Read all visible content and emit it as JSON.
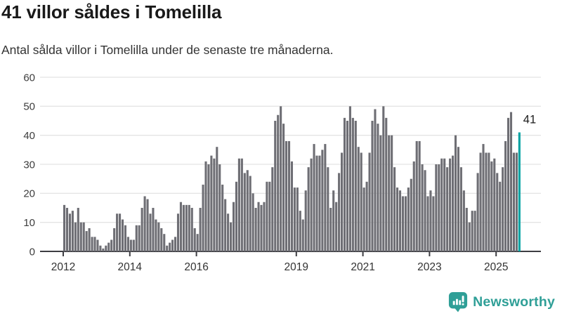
{
  "header": {
    "title": "41 villor såldes i Tomelilla",
    "subtitle": "Antal sålda villor i Tomelilla under de senaste tre månaderna."
  },
  "chart_data": {
    "type": "bar",
    "title": "41 villor såldes i Tomelilla",
    "subtitle": "Antal sålda villor i Tomelilla under de senaste tre månaderna.",
    "frequency": "monthly",
    "start": "2012-01",
    "values": [
      16,
      15,
      13,
      14,
      10,
      15,
      10,
      10,
      7,
      8,
      5,
      5,
      4,
      2,
      1,
      2,
      3,
      4,
      8,
      13,
      13,
      11,
      9,
      5,
      4,
      4,
      9,
      9,
      15,
      19,
      18,
      13,
      15,
      11,
      10,
      8,
      6,
      2,
      3,
      4,
      5,
      13,
      17,
      16,
      16,
      16,
      15,
      8,
      6,
      15,
      23,
      31,
      30,
      33,
      32,
      36,
      30,
      23,
      18,
      13,
      10,
      17,
      24,
      32,
      32,
      27,
      28,
      26,
      20,
      15,
      17,
      16,
      17,
      24,
      24,
      29,
      45,
      47,
      50,
      44,
      38,
      38,
      31,
      22,
      22,
      14,
      11,
      21,
      29,
      32,
      37,
      33,
      33,
      35,
      37,
      29,
      15,
      21,
      17,
      27,
      34,
      46,
      45,
      50,
      46,
      45,
      36,
      34,
      22,
      24,
      34,
      45,
      49,
      44,
      40,
      50,
      46,
      40,
      40,
      29,
      22,
      21,
      19,
      19,
      22,
      25,
      31,
      38,
      38,
      30,
      28,
      19,
      21,
      19,
      30,
      30,
      32,
      32,
      29,
      32,
      33,
      40,
      36,
      29,
      21,
      15,
      10,
      14,
      14,
      27,
      34,
      37,
      34,
      34,
      31,
      32,
      27,
      24,
      29,
      38,
      46,
      48,
      34,
      34,
      41
    ],
    "highlight": {
      "index": 164,
      "value": 41,
      "label": "41"
    },
    "colors": {
      "bar": "#6e6e74",
      "highlight": "#00a2a2",
      "grid": "#e4e4e4",
      "axis": "#3d3d42",
      "tick_label": "#333333",
      "y_label": "#3d3d3d",
      "annotation": "#1a1a1a"
    },
    "ylim": [
      0,
      60
    ],
    "yticks": [
      0,
      10,
      20,
      30,
      40,
      50,
      60
    ],
    "xticks": [
      {
        "label": "2012",
        "index": 0
      },
      {
        "label": "2014",
        "index": 24
      },
      {
        "label": "2016",
        "index": 48
      },
      {
        "label": "2019",
        "index": 84
      },
      {
        "label": "2021",
        "index": 108
      },
      {
        "label": "2023",
        "index": 132
      },
      {
        "label": "2025",
        "index": 156
      }
    ],
    "grid": true,
    "legend": false
  },
  "footer": {
    "brand": "Newsworthy",
    "brand_color": "#2f9f97",
    "logo_icon": "bar-chart-speech-bubble-icon"
  }
}
